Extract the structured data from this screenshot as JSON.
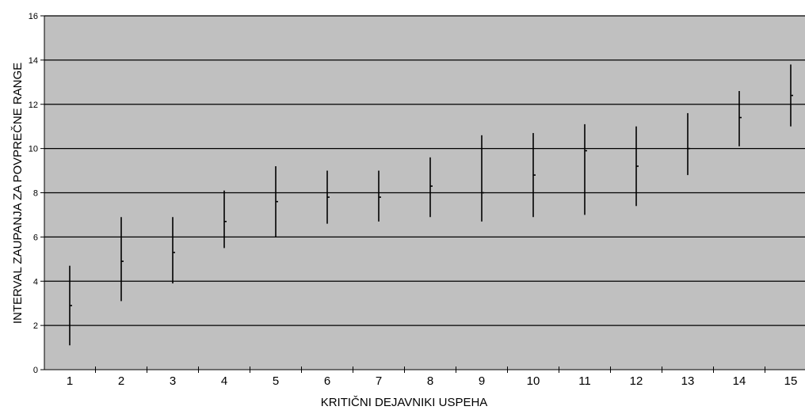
{
  "chart_data": {
    "type": "error-bar",
    "title": "",
    "xlabel": "KRITIČNI DEJAVNIKI USPEHA",
    "ylabel": "INTERVAL ZAUPANJA ZA POVPREČNE RANGE",
    "ylim": [
      0,
      16
    ],
    "yticks": [
      "0",
      "2",
      "4",
      "6",
      "8",
      "10",
      "12",
      "14",
      "16"
    ],
    "categories": [
      "1",
      "2",
      "3",
      "4",
      "5",
      "6",
      "7",
      "8",
      "9",
      "10",
      "11",
      "12",
      "13",
      "14",
      "15"
    ],
    "mean": [
      2.9,
      4.9,
      5.3,
      6.7,
      7.6,
      7.8,
      7.8,
      8.3,
      8.0,
      8.8,
      9.9,
      9.2,
      10.0,
      11.4,
      12.4
    ],
    "lower": [
      1.1,
      3.1,
      3.9,
      5.5,
      6.0,
      6.6,
      6.7,
      6.9,
      6.7,
      6.9,
      7.0,
      7.4,
      8.8,
      10.1,
      11.0
    ],
    "upper": [
      4.7,
      6.9,
      6.9,
      8.1,
      9.2,
      9.0,
      9.0,
      9.6,
      10.6,
      10.7,
      11.1,
      11.0,
      11.6,
      12.6,
      13.8
    ],
    "grid": true,
    "legend": "none",
    "colors": {
      "plot_background": "#c0c0c0",
      "gridline": "#000000",
      "bar": "#000000"
    }
  }
}
